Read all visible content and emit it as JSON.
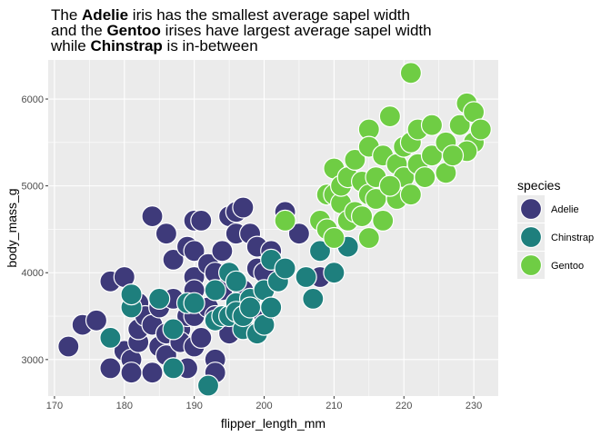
{
  "chart_data": {
    "type": "scatter",
    "title_lines": [
      [
        {
          "t": "The "
        },
        {
          "t": "Adelie",
          "b": true
        },
        {
          "t": " iris has the smallest average sapel width"
        }
      ],
      [
        {
          "t": "and the "
        },
        {
          "t": "Gentoo",
          "b": true
        },
        {
          "t": " irises have largest average sapel width"
        }
      ],
      [
        {
          "t": "while "
        },
        {
          "t": "Chinstrap",
          "b": true
        },
        {
          "t": " is in-between"
        }
      ]
    ],
    "xlabel": "flipper_length_mm",
    "ylabel": "body_mass_g",
    "xlim": [
      169.1,
      233.5
    ],
    "ylim": [
      2580,
      6450
    ],
    "x_ticks": [
      170,
      180,
      190,
      200,
      210,
      220,
      230
    ],
    "x_tick_labels": [
      "170",
      "180",
      "190",
      "200",
      "210",
      "220",
      "230"
    ],
    "y_ticks": [
      3000,
      4000,
      5000,
      6000
    ],
    "y_tick_labels": [
      "3000",
      "4000",
      "5000",
      "6000"
    ],
    "grid": true,
    "panel_background": "#ebebeb",
    "legend": {
      "title": "species",
      "position": "right"
    },
    "series": [
      {
        "name": "Adelie",
        "color": "#3e3a7a",
        "points": [
          [
            172,
            3150
          ],
          [
            174,
            3400
          ],
          [
            176,
            3450
          ],
          [
            178,
            3900
          ],
          [
            178,
            2900
          ],
          [
            180,
            3950
          ],
          [
            180,
            3100
          ],
          [
            181,
            3000
          ],
          [
            181,
            2850
          ],
          [
            182,
            3200
          ],
          [
            182,
            3350
          ],
          [
            182,
            3650
          ],
          [
            183,
            3500
          ],
          [
            184,
            3400
          ],
          [
            184,
            2850
          ],
          [
            184,
            4650
          ],
          [
            185,
            3600
          ],
          [
            185,
            3150
          ],
          [
            186,
            3050
          ],
          [
            186,
            4450
          ],
          [
            186,
            3300
          ],
          [
            187,
            2900
          ],
          [
            187,
            3700
          ],
          [
            187,
            4150
          ],
          [
            188,
            3350
          ],
          [
            188,
            3200
          ],
          [
            189,
            2900
          ],
          [
            189,
            3500
          ],
          [
            189,
            4300
          ],
          [
            190,
            4600
          ],
          [
            190,
            3950
          ],
          [
            190,
            4250
          ],
          [
            190,
            3800
          ],
          [
            190,
            3500
          ],
          [
            190,
            3150
          ],
          [
            191,
            4600
          ],
          [
            191,
            3250
          ],
          [
            192,
            4100
          ],
          [
            192,
            3600
          ],
          [
            193,
            3500
          ],
          [
            193,
            3000
          ],
          [
            193,
            2850
          ],
          [
            193,
            4000
          ],
          [
            194,
            4250
          ],
          [
            194,
            3800
          ],
          [
            195,
            4650
          ],
          [
            195,
            3400
          ],
          [
            195,
            3300
          ],
          [
            196,
            4700
          ],
          [
            196,
            4450
          ],
          [
            196,
            3900
          ],
          [
            197,
            4750
          ],
          [
            197,
            3800
          ],
          [
            198,
            4450
          ],
          [
            198,
            3650
          ],
          [
            199,
            4300
          ],
          [
            199,
            4050
          ],
          [
            200,
            4000
          ],
          [
            200,
            3500
          ],
          [
            201,
            4250
          ],
          [
            203,
            4700
          ],
          [
            205,
            4450
          ],
          [
            208,
            3950
          ]
        ]
      },
      {
        "name": "Chinstrap",
        "color": "#1e7f7d",
        "points": [
          [
            178,
            3250
          ],
          [
            181,
            3600
          ],
          [
            181,
            3750
          ],
          [
            185,
            3700
          ],
          [
            187,
            2900
          ],
          [
            187,
            3350
          ],
          [
            189,
            3650
          ],
          [
            190,
            3650
          ],
          [
            192,
            2700
          ],
          [
            193,
            3450
          ],
          [
            193,
            3800
          ],
          [
            194,
            3500
          ],
          [
            195,
            3500
          ],
          [
            195,
            4000
          ],
          [
            196,
            3650
          ],
          [
            196,
            3900
          ],
          [
            196,
            3550
          ],
          [
            197,
            3350
          ],
          [
            197,
            3500
          ],
          [
            198,
            3700
          ],
          [
            198,
            3600
          ],
          [
            199,
            3300
          ],
          [
            200,
            3800
          ],
          [
            200,
            3400
          ],
          [
            201,
            3600
          ],
          [
            201,
            4150
          ],
          [
            202,
            3900
          ],
          [
            203,
            4050
          ],
          [
            206,
            3950
          ],
          [
            207,
            3700
          ],
          [
            208,
            4250
          ],
          [
            210,
            4000
          ],
          [
            212,
            4300
          ]
        ]
      },
      {
        "name": "Gentoo",
        "color": "#6fcd44",
        "points": [
          [
            203,
            4600
          ],
          [
            208,
            4600
          ],
          [
            209,
            4900
          ],
          [
            209,
            4500
          ],
          [
            210,
            4400
          ],
          [
            210,
            4900
          ],
          [
            210,
            5200
          ],
          [
            211,
            4800
          ],
          [
            211,
            5000
          ],
          [
            212,
            4600
          ],
          [
            212,
            5100
          ],
          [
            213,
            4700
          ],
          [
            213,
            5300
          ],
          [
            214,
            4650
          ],
          [
            214,
            5050
          ],
          [
            215,
            4400
          ],
          [
            215,
            4900
          ],
          [
            215,
            5650
          ],
          [
            215,
            5450
          ],
          [
            216,
            5100
          ],
          [
            216,
            4850
          ],
          [
            217,
            4600
          ],
          [
            217,
            5350
          ],
          [
            218,
            5800
          ],
          [
            219,
            4850
          ],
          [
            219,
            5250
          ],
          [
            220,
            5450
          ],
          [
            220,
            5100
          ],
          [
            221,
            5500
          ],
          [
            221,
            6300
          ],
          [
            222,
            5250
          ],
          [
            222,
            5650
          ],
          [
            224,
            5350
          ],
          [
            226,
            5500
          ],
          [
            228,
            5700
          ],
          [
            229,
            5950
          ],
          [
            230,
            5850
          ],
          [
            230,
            5500
          ],
          [
            231,
            5650
          ],
          [
            223,
            5100
          ],
          [
            226,
            5150
          ],
          [
            229,
            5400
          ],
          [
            221,
            4900
          ],
          [
            218,
            5000
          ],
          [
            224,
            5700
          ],
          [
            227,
            5350
          ]
        ]
      }
    ]
  }
}
